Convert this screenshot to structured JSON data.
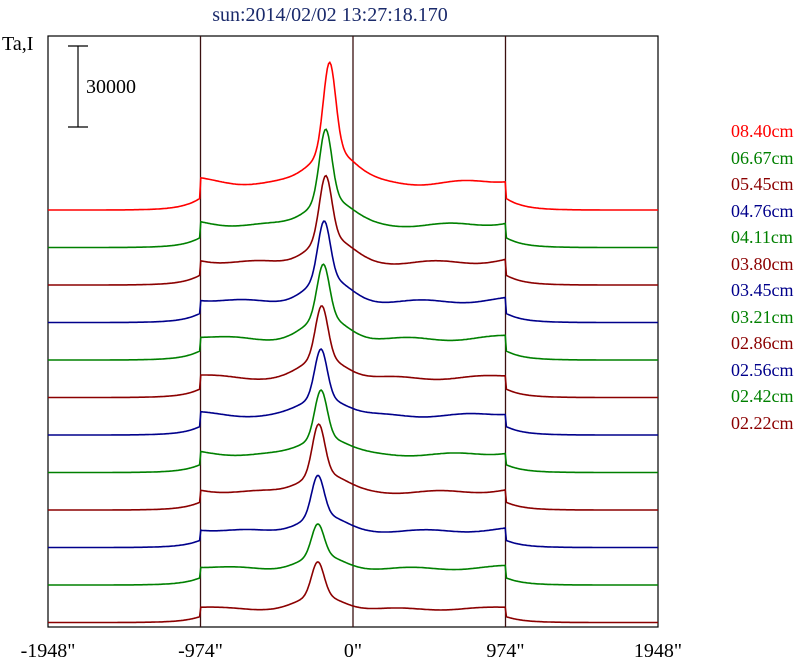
{
  "chart_data": {
    "type": "line",
    "title": "sun:2014/02/02 13:27:18.170",
    "ylabel": "Ta,I",
    "xlabel": "",
    "scale_bar_label": "30000",
    "x_ticks": [
      "-1948\"",
      "-974\"",
      "0\"",
      "974\"",
      "1948\""
    ],
    "x_tick_values": [
      -1948,
      -974,
      0,
      974,
      1948
    ],
    "xlim": [
      -1948,
      1948
    ],
    "vertical_lines": [
      -974,
      0,
      974
    ],
    "grid": false,
    "legend_position": "right",
    "series_colors": {
      "red": "#ff0000",
      "green": "#008000",
      "maroon": "#8b0000",
      "blue": "#00008b"
    },
    "series": [
      {
        "name": "08.40cm",
        "color": "#ff0000",
        "peak": 100000,
        "disk": 18000,
        "peak_x": -150
      },
      {
        "name": "06.67cm",
        "color": "#008000",
        "peak": 80000,
        "disk": 15000,
        "peak_x": -175
      },
      {
        "name": "05.45cm",
        "color": "#8b0000",
        "peak": 73000,
        "disk": 15000,
        "peak_x": -175
      },
      {
        "name": "04.76cm",
        "color": "#00008b",
        "peak": 67000,
        "disk": 14000,
        "peak_x": -185
      },
      {
        "name": "04.11cm",
        "color": "#008000",
        "peak": 63000,
        "disk": 14000,
        "peak_x": -190
      },
      {
        "name": "03.80cm",
        "color": "#8b0000",
        "peak": 61000,
        "disk": 13000,
        "peak_x": -200
      },
      {
        "name": "03.45cm",
        "color": "#00008b",
        "peak": 58000,
        "disk": 13000,
        "peak_x": -205
      },
      {
        "name": "03.21cm",
        "color": "#008000",
        "peak": 56000,
        "disk": 12000,
        "peak_x": -205
      },
      {
        "name": "02.86cm",
        "color": "#8b0000",
        "peak": 58000,
        "disk": 12000,
        "peak_x": -220
      },
      {
        "name": "02.56cm",
        "color": "#00008b",
        "peak": 48000,
        "disk": 11000,
        "peak_x": -225
      },
      {
        "name": "02.42cm",
        "color": "#008000",
        "peak": 40000,
        "disk": 11000,
        "peak_x": -225
      },
      {
        "name": "02.22cm",
        "color": "#8b0000",
        "peak": 40000,
        "disk": 9000,
        "peak_x": -225
      }
    ]
  }
}
